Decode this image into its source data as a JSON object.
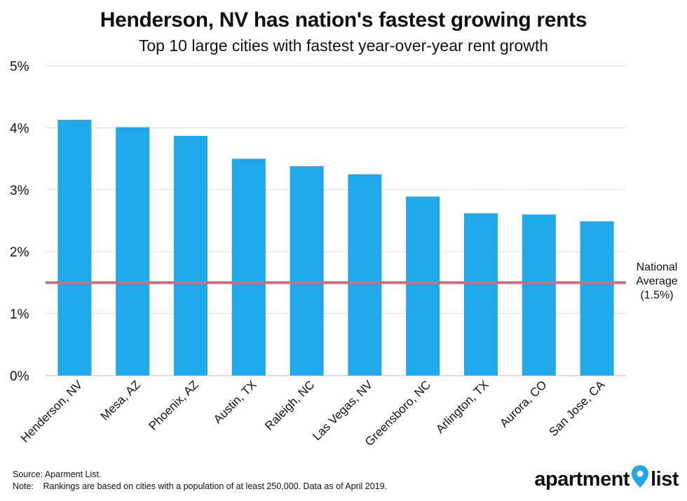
{
  "chart_data": {
    "type": "bar",
    "title": "Henderson, NV has nation's fastest growing rents",
    "subtitle": "Top 10 large cities with fastest year-over-year rent growth",
    "categories": [
      "Henderson, NV",
      "Mesa, AZ",
      "Phoenix, AZ",
      "Austin, TX",
      "Raleigh, NC",
      "Las Vegas, NV",
      "Greensboro, NC",
      "Arlington, TX",
      "Aurora, CO",
      "San Jose, CA"
    ],
    "values": [
      4.13,
      4.01,
      3.87,
      3.5,
      3.38,
      3.25,
      2.89,
      2.62,
      2.6,
      2.49
    ],
    "yticks": [
      "0%",
      "1%",
      "2%",
      "3%",
      "4%",
      "5%"
    ],
    "ylim": [
      0,
      5
    ],
    "y_unit": "%",
    "grid": true,
    "bar_color": "#1fa9ea",
    "reference_line": {
      "value": 1.5,
      "label_lines": [
        "National",
        "Average",
        "(1.5%)"
      ],
      "color": "#c66f83"
    }
  },
  "footer": {
    "source_label": "Source:",
    "source_text": "Aparment List.",
    "note_label": "Note:",
    "note_text": "Rankings are based on cities with a population of at least 250,000. Data as of April 2019."
  },
  "logo": {
    "part1": "apartment",
    "part2": "list",
    "pin_color": "#1fa9ea"
  }
}
